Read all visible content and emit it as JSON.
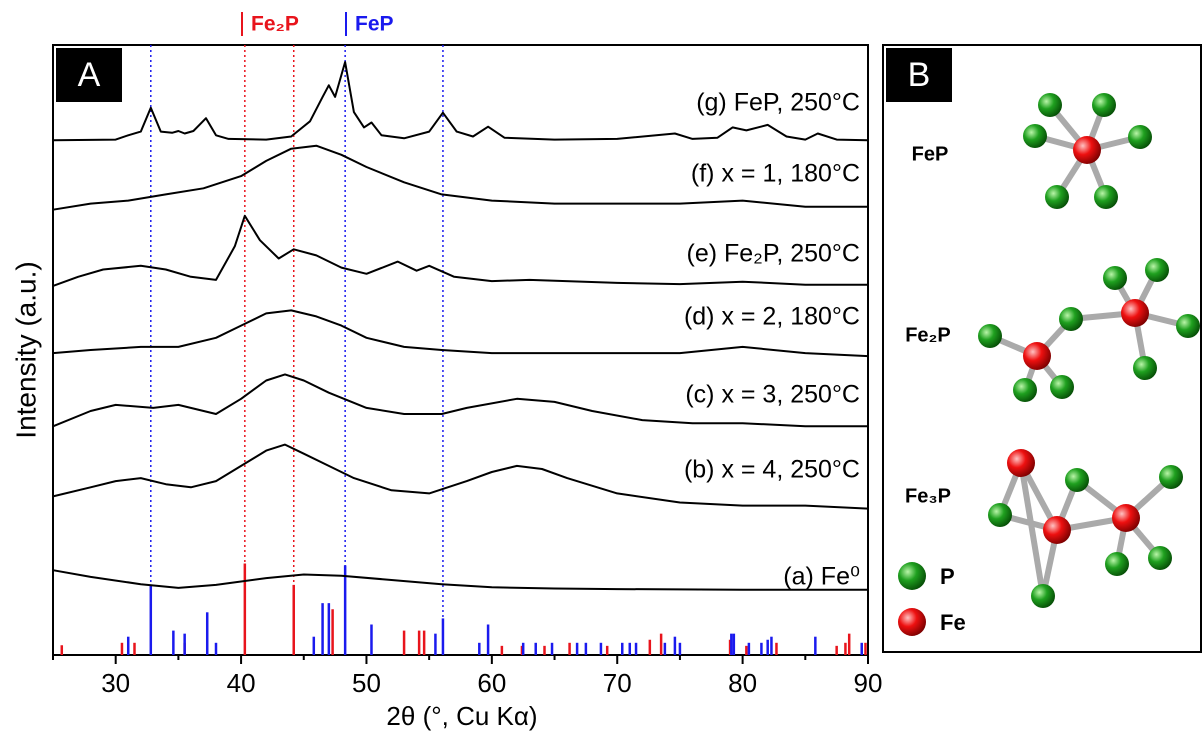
{
  "chart_data": {
    "type": "line",
    "xlabel": "2θ (°, Cu Kα)",
    "ylabel": "Intensity (a.u.)",
    "panel_a": "A",
    "panel_b": "B",
    "xlim": [
      25,
      90
    ],
    "ylim": [
      0,
      100
    ],
    "xticks": [
      30,
      40,
      50,
      60,
      70,
      80,
      90
    ],
    "xminor": [
      25,
      35,
      45,
      55,
      65,
      75,
      85
    ],
    "series": [
      {
        "name": "(a) Fe⁰",
        "color": "#000000",
        "x": [
          25,
          28,
          32,
          35,
          38,
          42,
          45,
          48,
          52,
          56,
          60,
          65,
          70,
          80,
          90
        ],
        "values": [
          13.9,
          12.8,
          11.6,
          11,
          11.5,
          12.6,
          13.2,
          13,
          12.3,
          11.6,
          11.1,
          10.9,
          10.8,
          10.7,
          10.7
        ]
      },
      {
        "name": "(b) x = 4, 250°C",
        "color": "#000000",
        "x": [
          25,
          28,
          30,
          32,
          34,
          36,
          38,
          40,
          42,
          43.5,
          45,
          47,
          49,
          52,
          55,
          58,
          60,
          62,
          64,
          66,
          70,
          75,
          80,
          85,
          90
        ],
        "values": [
          26,
          27.5,
          28.5,
          29,
          28,
          27.5,
          28.5,
          31,
          33.5,
          34.5,
          33,
          31,
          29,
          27,
          26.5,
          28.5,
          30,
          31,
          30.5,
          29,
          26.5,
          25,
          24.5,
          24.5,
          24
        ]
      },
      {
        "name": "(c) x = 3, 250°C",
        "color": "#000000",
        "x": [
          25,
          28,
          30,
          33,
          35,
          38,
          40,
          42,
          43.5,
          45,
          47,
          50,
          53,
          56,
          58,
          62,
          65,
          68,
          72,
          76,
          80,
          85,
          90
        ],
        "values": [
          37.5,
          40,
          41,
          40.5,
          41,
          39.5,
          42,
          45,
          46,
          45,
          43,
          40.5,
          39.5,
          39.5,
          40.5,
          42,
          41.5,
          40,
          38.5,
          38,
          38,
          37.5,
          37.5
        ]
      },
      {
        "name": "(d) x = 2, 180°C",
        "color": "#000000",
        "x": [
          25,
          28,
          32,
          35,
          38,
          40,
          42,
          44,
          46,
          48,
          50,
          53,
          56,
          60,
          65,
          70,
          75,
          80,
          85,
          90
        ],
        "values": [
          49.5,
          50,
          50.5,
          50.5,
          52,
          54,
          56,
          56.5,
          55.5,
          54,
          52,
          50.5,
          50,
          49.5,
          49.5,
          49.5,
          49.5,
          50.5,
          49.5,
          49
        ]
      },
      {
        "name": "(e) Fe₂P, 250°C",
        "color": "#000000",
        "x": [
          25,
          27,
          29,
          32,
          34,
          36,
          38,
          39.5,
          40.3,
          41.5,
          43,
          44.2,
          46,
          48,
          50,
          52.5,
          54,
          55,
          57,
          60,
          63,
          70,
          75,
          80,
          85,
          90
        ],
        "values": [
          60.5,
          62,
          63.2,
          63.8,
          63.2,
          62,
          61.5,
          67,
          72,
          68,
          65,
          66.5,
          65.5,
          63.5,
          62.5,
          64.5,
          63,
          63.8,
          62,
          61.3,
          61.5,
          61,
          60.8,
          61.2,
          60.7,
          60.7
        ]
      },
      {
        "name": "(f) x = 1, 180°C",
        "color": "#000000",
        "x": [
          25,
          28,
          31,
          34,
          37,
          40,
          42,
          44,
          46,
          48,
          50,
          53,
          56,
          60,
          65,
          70,
          75,
          80,
          85,
          90
        ],
        "values": [
          73,
          74,
          74.5,
          75.5,
          76.5,
          78.5,
          81,
          83,
          83.5,
          82,
          80,
          77.5,
          75.5,
          74.5,
          74,
          74,
          74,
          74.5,
          73.5,
          73.5
        ]
      },
      {
        "name": "(g) FeP, 250°C",
        "color": "#000000",
        "x": [
          25,
          30,
          31,
          32,
          32.8,
          33.6,
          34.5,
          35,
          35.5,
          36.2,
          37.2,
          38,
          39,
          42,
          44,
          45.5,
          46.5,
          47,
          47.5,
          48.3,
          49,
          49.8,
          50.4,
          51.2,
          53,
          55,
          56.1,
          57.2,
          58.5,
          59.7,
          61,
          65,
          70,
          74.6,
          76,
          78,
          79.2,
          80.3,
          82,
          83.5,
          85,
          86,
          87.5,
          90
        ],
        "values": [
          84.4,
          84.5,
          85.2,
          85.8,
          89.7,
          85.8,
          85.6,
          85.9,
          85.5,
          85.9,
          88,
          85.2,
          84.6,
          84.5,
          85,
          87.5,
          91.5,
          93.4,
          91.5,
          97.2,
          89,
          86.5,
          87.3,
          85.2,
          84.7,
          85.8,
          88.9,
          85.8,
          85,
          86.6,
          84.8,
          84.5,
          84.6,
          85.5,
          84.6,
          84.8,
          86.5,
          86,
          86.9,
          85,
          84.5,
          85.5,
          84.5,
          84.4
        ]
      }
    ],
    "references": [
      {
        "name": "Fe₂P",
        "color": "#e8141c",
        "x": [
          25.7,
          30.5,
          31.5,
          35.5,
          40.3,
          44.2,
          47.3,
          53.0,
          54.2,
          54.6,
          60.8,
          62.4,
          64.2,
          66.2,
          69.2,
          72.6,
          73.5,
          79.0,
          80.3,
          82.7,
          87.5,
          88.2,
          88.5,
          89.8
        ],
        "values": [
          1.6,
          2,
          2,
          2,
          15,
          11.5,
          7.5,
          4,
          4,
          4,
          1.5,
          1.5,
          1.5,
          2,
          1.5,
          2.5,
          3.5,
          2.5,
          1.5,
          2,
          1.5,
          2,
          3.5,
          2
        ],
        "lines": [
          40.3,
          44.2
        ]
      },
      {
        "name": "FeP",
        "color": "#1a1aee",
        "x": [
          31.0,
          32.8,
          34.6,
          35.5,
          37.3,
          38.0,
          45.8,
          46.5,
          47.0,
          48.3,
          50.4,
          55.5,
          56.1,
          59.0,
          59.7,
          62.5,
          63.5,
          64.8,
          66.8,
          67.5,
          68.7,
          70.4,
          71.0,
          71.5,
          73.8,
          74.6,
          75.0,
          79.1,
          79.3,
          80.5,
          81.5,
          82.0,
          82.3,
          85.8,
          89.5
        ],
        "values": [
          3,
          11.5,
          4,
          3.5,
          7,
          2,
          3,
          8.5,
          8.5,
          14.7,
          5,
          3.5,
          6,
          2,
          5,
          2,
          2,
          2,
          2,
          2,
          2,
          2,
          2,
          2,
          2,
          3,
          2,
          3.5,
          3.5,
          2,
          2,
          2.5,
          3,
          3,
          2
        ],
        "lines": [
          32.8,
          48.3,
          56.1
        ]
      }
    ],
    "structures": [
      {
        "label": "FeP"
      },
      {
        "label": "Fe₂P"
      },
      {
        "label": "Fe₃P"
      }
    ],
    "atom_legend": [
      "P",
      "Fe"
    ]
  }
}
